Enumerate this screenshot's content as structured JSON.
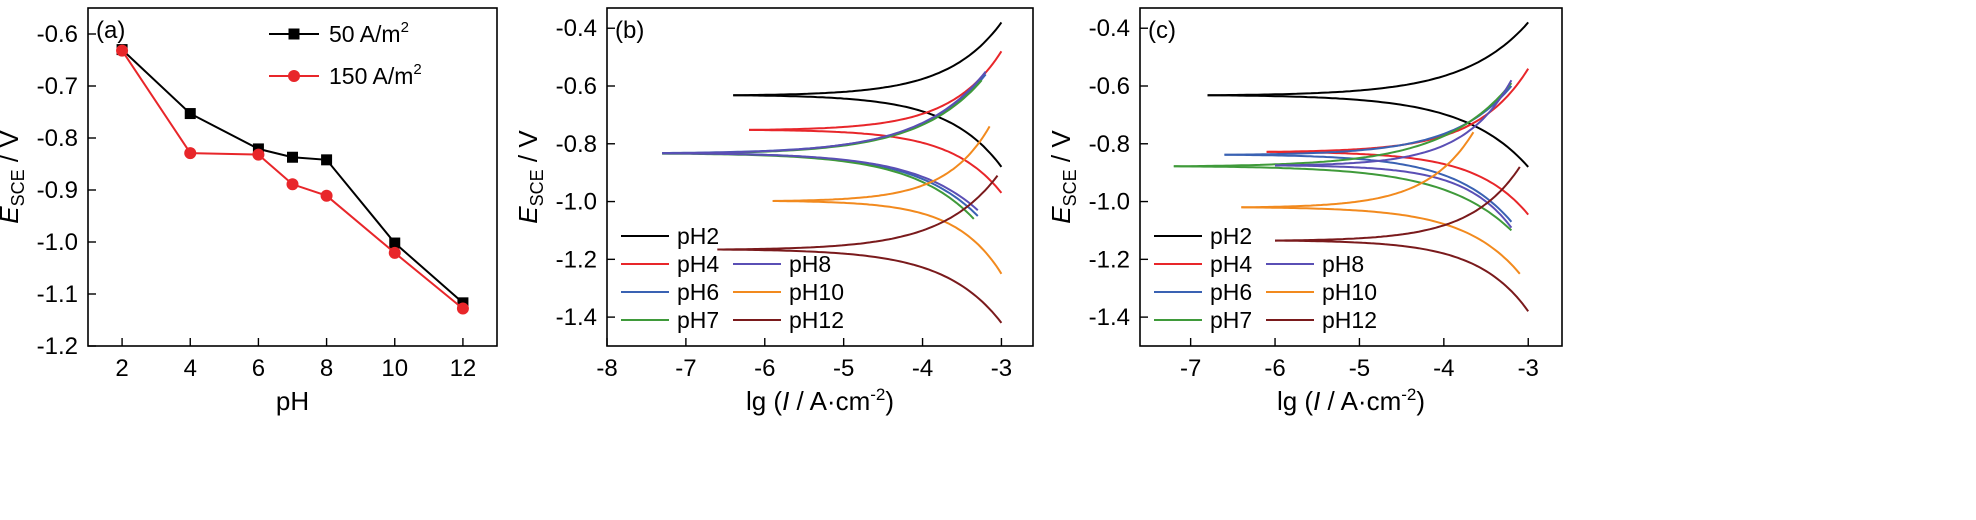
{
  "chart_data": [
    {
      "panel": "(a)",
      "type": "line",
      "xlabel": "pH",
      "ylabel": {
        "main": "E",
        "sub": "SCE",
        "tail": " / V"
      },
      "xlim": [
        1,
        13
      ],
      "ylim": [
        -1.2,
        -0.55
      ],
      "xticks": [
        2,
        4,
        6,
        8,
        10,
        12
      ],
      "yticks": [
        -0.6,
        -0.7,
        -0.8,
        -0.9,
        -1.0,
        -1.1,
        -1.2
      ],
      "ytick_labels": [
        "-0.6",
        "-0.7",
        "-0.8",
        "-0.9",
        "-1.0",
        "-1.1",
        "-1.2"
      ],
      "legend_placement": "top-right",
      "series": [
        {
          "name": "50 A/m",
          "name_sup": "2",
          "color": "#000000",
          "marker": "square",
          "x": [
            2,
            4,
            6,
            7,
            8,
            10,
            12
          ],
          "y": [
            -0.63,
            -0.753,
            -0.821,
            -0.837,
            -0.842,
            -1.002,
            -1.117
          ]
        },
        {
          "name": "150 A/m",
          "name_sup": "2",
          "color": "#e8262a",
          "marker": "circle",
          "x": [
            2,
            4,
            6,
            7,
            8,
            10,
            12
          ],
          "y": [
            -0.632,
            -0.829,
            -0.832,
            -0.889,
            -0.911,
            -1.021,
            -1.128
          ]
        }
      ]
    },
    {
      "panel": "(b)",
      "type": "line",
      "xlabel": {
        "pre": "lg (",
        "italic": "I",
        "mid": " / A·cm",
        "sup": "-2",
        "post": ")"
      },
      "ylabel": {
        "main": "E",
        "sub": "SCE",
        "tail": " / V"
      },
      "xlim": [
        -8,
        -2.6
      ],
      "ylim": [
        -1.5,
        -0.33
      ],
      "xticks": [
        -8,
        -7,
        -6,
        -5,
        -4,
        -3
      ],
      "yticks": [
        -0.4,
        -0.6,
        -0.8,
        -1.0,
        -1.2,
        -1.4
      ],
      "ytick_labels": [
        "-0.4",
        "-0.6",
        "-0.8",
        "-1.0",
        "-1.2",
        "-1.4"
      ],
      "legend_placement": "bottom-left",
      "series": [
        {
          "name": "pH2",
          "color": "#000000",
          "x0": -6.4,
          "ecorr": -0.632,
          "anodic_end": [
            -3.0,
            -0.38
          ],
          "cathodic_end": [
            -3.0,
            -0.88
          ]
        },
        {
          "name": "pH4",
          "color": "#e8262a",
          "x0": -6.2,
          "ecorr": -0.752,
          "anodic_end": [
            -3.0,
            -0.48
          ],
          "cathodic_end": [
            -3.0,
            -0.97
          ]
        },
        {
          "name": "pH6",
          "color": "#3a62b3",
          "x0": -7.3,
          "ecorr": -0.832,
          "anodic_end": [
            -3.2,
            -0.56
          ],
          "cathodic_end": [
            -3.3,
            -1.05
          ]
        },
        {
          "name": "pH7",
          "color": "#3f9a3a",
          "x0": -7.3,
          "ecorr": -0.834,
          "anodic_end": [
            -3.25,
            -0.58
          ],
          "cathodic_end": [
            -3.35,
            -1.06
          ]
        },
        {
          "name": "pH8",
          "color": "#5a4fb5",
          "x0": -7.3,
          "ecorr": -0.833,
          "anodic_end": [
            -3.2,
            -0.55
          ],
          "cathodic_end": [
            -3.3,
            -1.03
          ]
        },
        {
          "name": "pH10",
          "color": "#f28a1e",
          "x0": -5.9,
          "ecorr": -0.998,
          "anodic_end": [
            -3.15,
            -0.74
          ],
          "cathodic_end": [
            -3.0,
            -1.25
          ]
        },
        {
          "name": "pH12",
          "color": "#7a1a1c",
          "x0": -6.6,
          "ecorr": -1.166,
          "anodic_end": [
            -3.05,
            -0.91
          ],
          "cathodic_end": [
            -3.0,
            -1.42
          ]
        }
      ]
    },
    {
      "panel": "(c)",
      "type": "line",
      "xlabel": {
        "pre": "lg (",
        "italic": "I",
        "mid": " / A·cm",
        "sup": "-2",
        "post": ")"
      },
      "ylabel": {
        "main": "E",
        "sub": "SCE",
        "tail": " / V"
      },
      "xlim": [
        -7.6,
        -2.6
      ],
      "ylim": [
        -1.5,
        -0.33
      ],
      "xticks": [
        -7,
        -6,
        -5,
        -4,
        -3
      ],
      "yticks": [
        -0.4,
        -0.6,
        -0.8,
        -1.0,
        -1.2,
        -1.4
      ],
      "ytick_labels": [
        "-0.4",
        "-0.6",
        "-0.8",
        "-1.0",
        "-1.2",
        "-1.4"
      ],
      "legend_placement": "bottom-left",
      "series": [
        {
          "name": "pH2",
          "color": "#000000",
          "x0": -6.8,
          "ecorr": -0.632,
          "anodic_end": [
            -3.0,
            -0.38
          ],
          "cathodic_end": [
            -3.0,
            -0.88
          ]
        },
        {
          "name": "pH4",
          "color": "#e8262a",
          "x0": -6.1,
          "ecorr": -0.828,
          "anodic_end": [
            -3.0,
            -0.54
          ],
          "cathodic_end": [
            -3.0,
            -1.045
          ]
        },
        {
          "name": "pH6",
          "color": "#3a62b3",
          "x0": -6.6,
          "ecorr": -0.838,
          "anodic_end": [
            -3.2,
            -0.6
          ],
          "cathodic_end": [
            -3.2,
            -1.07
          ]
        },
        {
          "name": "pH7",
          "color": "#3f9a3a",
          "x0": -7.2,
          "ecorr": -0.878,
          "anodic_end": [
            -3.2,
            -0.59
          ],
          "cathodic_end": [
            -3.2,
            -1.1
          ]
        },
        {
          "name": "pH8",
          "color": "#5a4fb5",
          "x0": -6.0,
          "ecorr": -0.875,
          "anodic_end": [
            -3.2,
            -0.58
          ],
          "cathodic_end": [
            -3.2,
            -1.09
          ]
        },
        {
          "name": "pH10",
          "color": "#f28a1e",
          "x0": -6.4,
          "ecorr": -1.02,
          "anodic_end": [
            -3.65,
            -0.76
          ],
          "cathodic_end": [
            -3.1,
            -1.25
          ]
        },
        {
          "name": "pH12",
          "color": "#7a1a1c",
          "x0": -6.0,
          "ecorr": -1.135,
          "anodic_end": [
            -3.1,
            -0.88
          ],
          "cathodic_end": [
            -3.0,
            -1.38
          ]
        }
      ]
    }
  ]
}
